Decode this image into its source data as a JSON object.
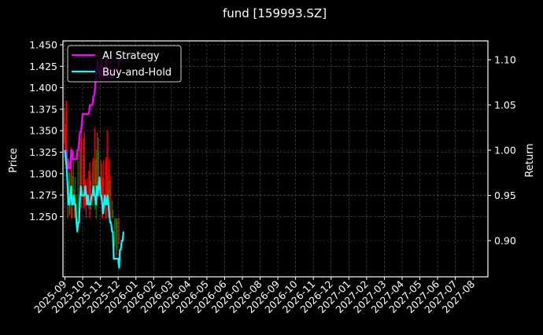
{
  "chart_data": {
    "type": "line",
    "title": "fund [159993.SZ]",
    "xlabel": "",
    "ylabel": "Price",
    "ylabel_right": "Return",
    "ylim": [
      1.236,
      1.455
    ],
    "ylim_right": [
      0.863,
      1.12
    ],
    "grid": true,
    "legend_position": "upper left",
    "background": "#000000",
    "x_tick_labels": [
      "2025-09",
      "2025-10",
      "2025-11",
      "2025-12",
      "2026-01",
      "2026-02",
      "2026-03",
      "2026-04",
      "2026-05",
      "2026-06",
      "2026-07",
      "2026-08",
      "2026-09",
      "2026-10",
      "2026-11",
      "2026-12",
      "2027-01",
      "2027-02",
      "2027-03",
      "2027-04",
      "2027-05",
      "2027-06",
      "2027-07",
      "2027-08"
    ],
    "y_tick_labels_left": [
      "1.250",
      "1.275",
      "1.300",
      "1.325",
      "1.350",
      "1.375",
      "1.400",
      "1.425",
      "1.450"
    ],
    "y_ticks_left": [
      1.25,
      1.275,
      1.3,
      1.325,
      1.35,
      1.375,
      1.4,
      1.425,
      1.45
    ],
    "y_tick_labels_right": [
      "0.90",
      "0.95",
      "1.00",
      "1.05",
      "1.10"
    ],
    "y_ticks_right": [
      0.9,
      0.95,
      1.0,
      1.05,
      1.1
    ],
    "series": [
      {
        "name": "AI Strategy",
        "axis": "right",
        "color": "#ff00ff",
        "x_month_offset": [
          0.0,
          0.05,
          0.1,
          0.15,
          0.2,
          0.25,
          0.3,
          0.35,
          0.4,
          0.45,
          0.5,
          0.55,
          0.6,
          0.65,
          0.7,
          0.75,
          0.8,
          0.85,
          0.9,
          0.95,
          1.0,
          1.05,
          1.1,
          1.15,
          1.2,
          1.25,
          1.3,
          1.35,
          1.4,
          1.45,
          1.5,
          1.55,
          1.6,
          1.65,
          1.7,
          1.75,
          1.8,
          1.85,
          1.9,
          1.95,
          2.0,
          2.05,
          2.1,
          2.15,
          2.2,
          2.25,
          2.3,
          2.35,
          2.4,
          2.45,
          2.5,
          2.55,
          2.6,
          2.65,
          2.7,
          2.75,
          2.8,
          2.85,
          2.9,
          2.95,
          3.0,
          3.05,
          3.1,
          3.15,
          3.2,
          3.25,
          3.3
        ],
        "values": [
          1.0,
          1.0,
          0.99,
          0.99,
          0.98,
          0.98,
          0.98,
          1.0,
          1.0,
          0.99,
          0.99,
          0.99,
          0.99,
          0.99,
          1.0,
          1.0,
          1.01,
          1.02,
          1.02,
          1.03,
          1.04,
          1.04,
          1.04,
          1.04,
          1.04,
          1.04,
          1.04,
          1.04,
          1.05,
          1.05,
          1.05,
          1.05,
          1.06,
          1.06,
          1.07,
          1.08,
          1.09,
          1.1,
          1.09,
          1.08,
          1.09,
          1.1,
          1.08,
          1.08,
          1.08,
          1.09,
          1.1,
          1.1,
          1.08,
          1.08,
          1.09,
          1.08,
          1.08,
          1.08,
          1.08,
          1.09,
          1.09,
          1.09,
          1.09,
          1.09,
          1.09,
          1.1,
          1.1,
          1.1,
          1.1,
          1.1,
          1.1
        ]
      },
      {
        "name": "Buy-and-Hold",
        "axis": "right",
        "color": "#00ffff",
        "x_month_offset": [
          0.0,
          0.05,
          0.1,
          0.15,
          0.2,
          0.25,
          0.3,
          0.35,
          0.4,
          0.45,
          0.5,
          0.55,
          0.6,
          0.65,
          0.7,
          0.75,
          0.8,
          0.85,
          0.9,
          0.95,
          1.0,
          1.05,
          1.1,
          1.15,
          1.2,
          1.25,
          1.3,
          1.35,
          1.4,
          1.45,
          1.5,
          1.55,
          1.6,
          1.65,
          1.7,
          1.75,
          1.8,
          1.85,
          1.9,
          1.95,
          2.0,
          2.05,
          2.1,
          2.15,
          2.2,
          2.25,
          2.3,
          2.35,
          2.4,
          2.45,
          2.5,
          2.55,
          2.6,
          2.65,
          2.7,
          2.75,
          2.8,
          2.85,
          2.9,
          2.95,
          3.0,
          3.05,
          3.1,
          3.15,
          3.2,
          3.25,
          3.3
        ],
        "values": [
          1.0,
          0.99,
          0.98,
          0.96,
          0.94,
          0.94,
          0.95,
          0.96,
          0.94,
          0.94,
          0.95,
          0.94,
          0.94,
          0.92,
          0.91,
          0.92,
          0.92,
          0.95,
          0.96,
          0.95,
          0.95,
          0.95,
          0.95,
          0.96,
          0.95,
          0.94,
          0.95,
          0.94,
          0.94,
          0.94,
          0.95,
          0.95,
          0.96,
          0.95,
          0.95,
          0.94,
          0.96,
          0.95,
          0.96,
          0.97,
          0.95,
          0.95,
          0.94,
          0.93,
          0.94,
          0.95,
          0.94,
          0.94,
          0.95,
          0.94,
          0.93,
          0.92,
          0.92,
          0.91,
          0.91,
          0.88,
          0.88,
          0.88,
          0.88,
          0.88,
          0.88,
          0.87,
          0.89,
          0.89,
          0.9,
          0.9,
          0.91
        ]
      }
    ],
    "candles": {
      "up_color": "#008000",
      "down_color": "#ff0000",
      "description": "Daily OHLC candlestick bars on left Price axis from 2025-09 to early 2025-12, ranging roughly 1.25 to 1.44"
    }
  }
}
